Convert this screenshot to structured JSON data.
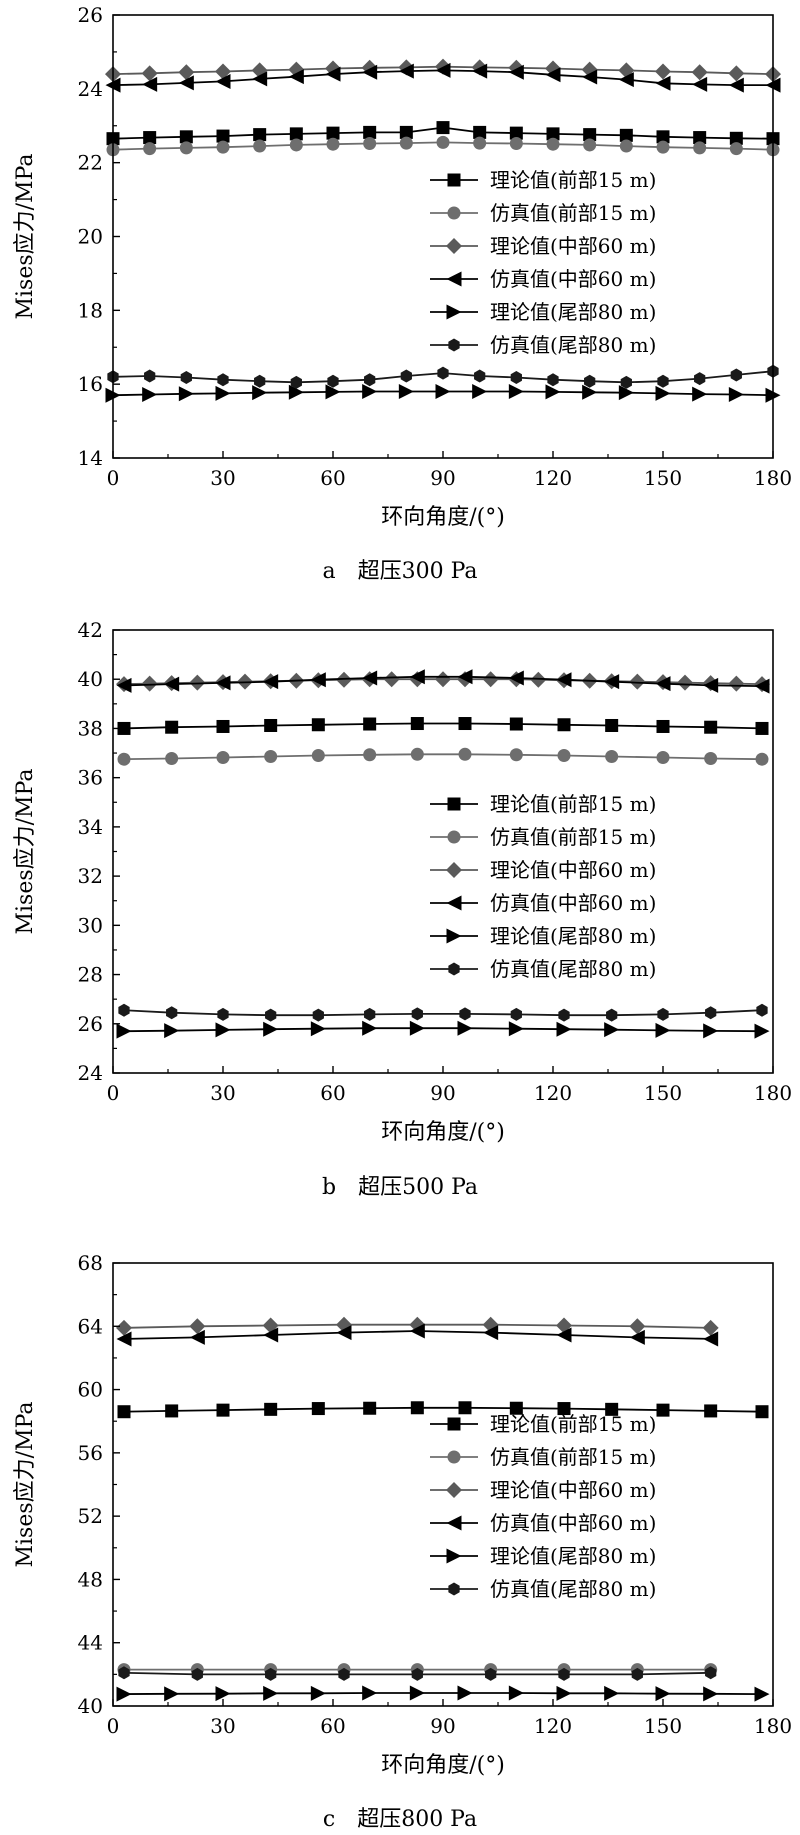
{
  "chart_data": [
    {
      "type": "line",
      "caption": "a　超压300 Pa",
      "xlabel": "环向角度/(°)",
      "ylabel": "Mises应力/MPa",
      "xlim": [
        0,
        180
      ],
      "ylim": [
        14,
        26
      ],
      "xticks": [
        0,
        30,
        60,
        90,
        120,
        150,
        180
      ],
      "yticks": [
        14,
        16,
        18,
        20,
        22,
        24,
        26
      ],
      "legend_position": "right-middle",
      "series": [
        {
          "name": "理论值(前部15 m)",
          "marker": "square",
          "color": "#000000",
          "x": [
            0,
            10,
            20,
            30,
            40,
            50,
            60,
            70,
            80,
            90,
            100,
            110,
            120,
            130,
            140,
            150,
            160,
            170,
            180
          ],
          "y": [
            22.65,
            22.68,
            22.7,
            22.72,
            22.76,
            22.78,
            22.8,
            22.82,
            22.82,
            22.95,
            22.82,
            22.8,
            22.78,
            22.76,
            22.74,
            22.7,
            22.68,
            22.66,
            22.65
          ]
        },
        {
          "name": "仿真值(前部15 m)",
          "marker": "circle",
          "color": "#6e6e6e",
          "x": [
            0,
            10,
            20,
            30,
            40,
            50,
            60,
            70,
            80,
            90,
            100,
            110,
            120,
            130,
            140,
            150,
            160,
            170,
            180
          ],
          "y": [
            22.35,
            22.38,
            22.4,
            22.42,
            22.45,
            22.48,
            22.5,
            22.52,
            22.53,
            22.55,
            22.53,
            22.52,
            22.5,
            22.48,
            22.45,
            22.42,
            22.4,
            22.38,
            22.35
          ]
        },
        {
          "name": "理论值(中部60 m)",
          "marker": "diamond",
          "color": "#5a5a5a",
          "x": [
            0,
            10,
            20,
            30,
            40,
            50,
            60,
            70,
            80,
            90,
            100,
            110,
            120,
            130,
            140,
            150,
            160,
            170,
            180
          ],
          "y": [
            24.4,
            24.42,
            24.45,
            24.47,
            24.5,
            24.52,
            24.55,
            24.57,
            24.58,
            24.6,
            24.58,
            24.57,
            24.55,
            24.52,
            24.5,
            24.47,
            24.45,
            24.42,
            24.4
          ]
        },
        {
          "name": "仿真值(中部60 m)",
          "marker": "tri-left",
          "color": "#000000",
          "x": [
            0,
            10,
            20,
            30,
            40,
            50,
            60,
            70,
            80,
            90,
            100,
            110,
            120,
            130,
            140,
            150,
            160,
            170,
            180
          ],
          "y": [
            24.1,
            24.12,
            24.16,
            24.2,
            24.27,
            24.33,
            24.4,
            24.45,
            24.48,
            24.5,
            24.48,
            24.45,
            24.38,
            24.32,
            24.25,
            24.15,
            24.12,
            24.1,
            24.1
          ]
        },
        {
          "name": "理论值(尾部80 m)",
          "marker": "tri-right",
          "color": "#000000",
          "x": [
            0,
            10,
            20,
            30,
            40,
            50,
            60,
            70,
            80,
            90,
            100,
            110,
            120,
            130,
            140,
            150,
            160,
            170,
            180
          ],
          "y": [
            15.7,
            15.72,
            15.74,
            15.75,
            15.77,
            15.78,
            15.79,
            15.8,
            15.8,
            15.8,
            15.8,
            15.8,
            15.79,
            15.78,
            15.77,
            15.75,
            15.73,
            15.72,
            15.7
          ]
        },
        {
          "name": "仿真值(尾部80 m)",
          "marker": "hexagon",
          "color": "#1a1a1a",
          "x": [
            0,
            10,
            20,
            30,
            40,
            50,
            60,
            70,
            80,
            90,
            100,
            110,
            120,
            130,
            140,
            150,
            160,
            170,
            180
          ],
          "y": [
            16.2,
            16.22,
            16.18,
            16.12,
            16.08,
            16.05,
            16.08,
            16.12,
            16.22,
            16.3,
            16.22,
            16.18,
            16.12,
            16.08,
            16.05,
            16.08,
            16.15,
            16.25,
            16.35
          ]
        }
      ]
    },
    {
      "type": "line",
      "caption": "b　超压500 Pa",
      "xlabel": "环向角度/(°)",
      "ylabel": "Mises应力/MPa",
      "xlim": [
        0,
        180
      ],
      "ylim": [
        24,
        42
      ],
      "xticks": [
        0,
        30,
        60,
        90,
        120,
        150,
        180
      ],
      "yticks": [
        24,
        26,
        28,
        30,
        32,
        34,
        36,
        38,
        40,
        42
      ],
      "legend_position": "right-middle",
      "series": [
        {
          "name": "理论值(前部15 m)",
          "marker": "square",
          "color": "#000000",
          "x": [
            3,
            16,
            30,
            43,
            56,
            70,
            83,
            96,
            110,
            123,
            136,
            150,
            163,
            177
          ],
          "y": [
            38.0,
            38.05,
            38.08,
            38.12,
            38.15,
            38.18,
            38.2,
            38.2,
            38.18,
            38.15,
            38.12,
            38.08,
            38.05,
            38.0
          ]
        },
        {
          "name": "仿真值(前部15 m)",
          "marker": "circle",
          "color": "#6e6e6e",
          "x": [
            3,
            16,
            30,
            43,
            56,
            70,
            83,
            96,
            110,
            123,
            136,
            150,
            163,
            177
          ],
          "y": [
            36.75,
            36.78,
            36.82,
            36.86,
            36.9,
            36.93,
            36.95,
            36.95,
            36.93,
            36.9,
            36.86,
            36.82,
            36.78,
            36.75
          ]
        },
        {
          "name": "理论值(中部60 m)",
          "marker": "diamond",
          "color": "#5a5a5a",
          "x": [
            3,
            10,
            16,
            23,
            30,
            36,
            43,
            50,
            56,
            63,
            70,
            76,
            83,
            90,
            96,
            103,
            110,
            116,
            123,
            130,
            136,
            143,
            150,
            156,
            163,
            170,
            177
          ],
          "y": [
            39.8,
            39.82,
            39.84,
            39.86,
            39.88,
            39.9,
            39.92,
            39.94,
            39.96,
            39.98,
            40.0,
            40.0,
            40.0,
            40.0,
            40.0,
            40.0,
            40.0,
            39.98,
            39.96,
            39.94,
            39.92,
            39.9,
            39.88,
            39.86,
            39.84,
            39.82,
            39.8
          ]
        },
        {
          "name": "仿真值(中部60 m)",
          "marker": "tri-left",
          "color": "#000000",
          "x": [
            3,
            16,
            30,
            43,
            56,
            70,
            83,
            96,
            110,
            123,
            136,
            150,
            163,
            177
          ],
          "y": [
            39.75,
            39.8,
            39.85,
            39.9,
            39.98,
            40.05,
            40.1,
            40.1,
            40.05,
            39.98,
            39.9,
            39.82,
            39.75,
            39.72
          ]
        },
        {
          "name": "理论值(尾部80 m)",
          "marker": "tri-right",
          "color": "#000000",
          "x": [
            3,
            16,
            30,
            43,
            56,
            70,
            83,
            96,
            110,
            123,
            136,
            150,
            163,
            177
          ],
          "y": [
            25.7,
            25.72,
            25.75,
            25.78,
            25.8,
            25.82,
            25.82,
            25.82,
            25.8,
            25.78,
            25.76,
            25.73,
            25.71,
            25.7
          ]
        },
        {
          "name": "仿真值(尾部80 m)",
          "marker": "hexagon",
          "color": "#1a1a1a",
          "x": [
            3,
            16,
            30,
            43,
            56,
            70,
            83,
            96,
            110,
            123,
            136,
            150,
            163,
            177
          ],
          "y": [
            26.55,
            26.45,
            26.38,
            26.35,
            26.35,
            26.38,
            26.4,
            26.4,
            26.38,
            26.35,
            26.35,
            26.38,
            26.45,
            26.55
          ]
        }
      ]
    },
    {
      "type": "line",
      "caption": "c　超压800 Pa",
      "xlabel": "环向角度/(°)",
      "ylabel": "Mises应力/MPa",
      "xlim": [
        0,
        180
      ],
      "ylim": [
        40,
        68
      ],
      "xticks": [
        0,
        30,
        60,
        90,
        120,
        150,
        180
      ],
      "yticks": [
        40,
        44,
        48,
        52,
        56,
        60,
        64,
        68
      ],
      "legend_position": "right-middle",
      "series": [
        {
          "name": "理论值(前部15 m)",
          "marker": "square",
          "color": "#000000",
          "x": [
            3,
            16,
            30,
            43,
            56,
            70,
            83,
            96,
            110,
            123,
            136,
            150,
            163,
            177
          ],
          "y": [
            58.6,
            58.65,
            58.7,
            58.75,
            58.8,
            58.82,
            58.85,
            58.85,
            58.82,
            58.8,
            58.75,
            58.7,
            58.65,
            58.6
          ]
        },
        {
          "name": "仿真值(前部15 m)",
          "marker": "circle",
          "color": "#6e6e6e",
          "x": [
            3,
            23,
            43,
            63,
            83,
            103,
            123,
            143,
            163
          ],
          "y": [
            42.3,
            42.3,
            42.3,
            42.3,
            42.3,
            42.3,
            42.3,
            42.3,
            42.3
          ]
        },
        {
          "name": "理论值(中部60 m)",
          "marker": "diamond",
          "color": "#5a5a5a",
          "x": [
            3,
            23,
            43,
            63,
            83,
            103,
            123,
            143,
            163
          ],
          "y": [
            63.9,
            64.0,
            64.05,
            64.1,
            64.1,
            64.1,
            64.05,
            64.0,
            63.9
          ]
        },
        {
          "name": "仿真值(中部60 m)",
          "marker": "tri-left",
          "color": "#000000",
          "x": [
            3,
            23,
            43,
            63,
            83,
            103,
            123,
            143,
            163
          ],
          "y": [
            63.2,
            63.3,
            63.45,
            63.6,
            63.7,
            63.6,
            63.45,
            63.3,
            63.2
          ]
        },
        {
          "name": "理论值(尾部80 m)",
          "marker": "tri-right",
          "color": "#000000",
          "x": [
            3,
            16,
            30,
            43,
            56,
            70,
            83,
            96,
            110,
            123,
            136,
            150,
            163,
            177
          ],
          "y": [
            40.75,
            40.77,
            40.78,
            40.8,
            40.8,
            40.82,
            40.82,
            40.82,
            40.82,
            40.8,
            40.8,
            40.78,
            40.77,
            40.75
          ]
        },
        {
          "name": "仿真值(尾部80 m)",
          "marker": "hexagon",
          "color": "#1a1a1a",
          "x": [
            3,
            23,
            43,
            63,
            83,
            103,
            123,
            143,
            163
          ],
          "y": [
            42.1,
            42.0,
            42.0,
            42.0,
            42.0,
            42.0,
            42.0,
            42.0,
            42.1
          ]
        }
      ]
    }
  ]
}
